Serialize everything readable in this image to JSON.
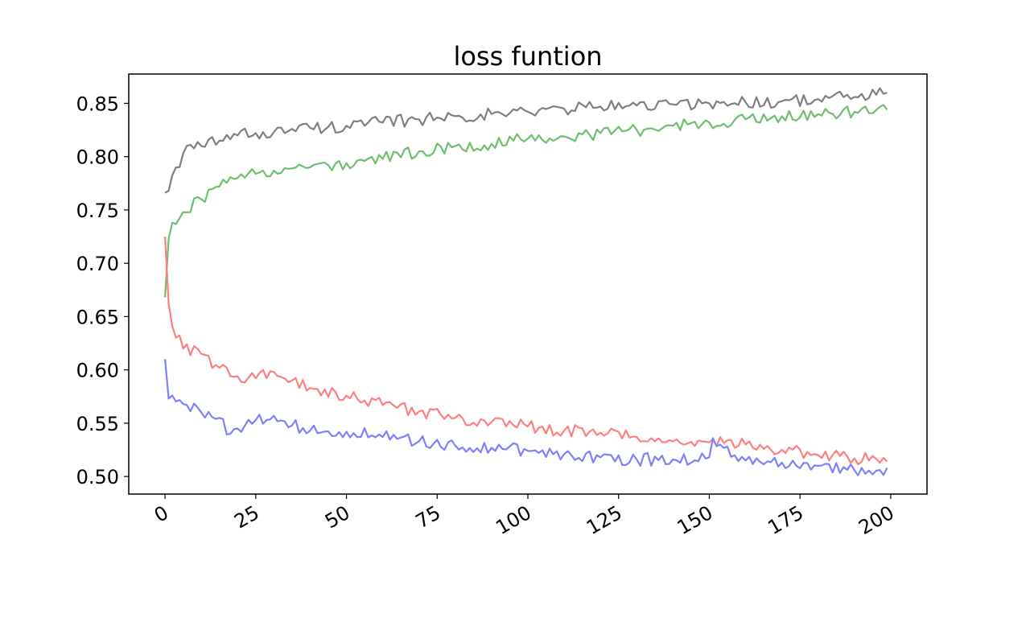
{
  "chart_data": {
    "type": "line",
    "title": "loss funtion",
    "xlabel": "",
    "ylabel": "",
    "xlim": [
      -10,
      210
    ],
    "ylim": [
      0.4835,
      0.8775
    ],
    "xticks": [
      0,
      25,
      50,
      75,
      100,
      125,
      150,
      175,
      200
    ],
    "xtick_labels": [
      "0",
      "25",
      "50",
      "75",
      "100",
      "125",
      "150",
      "175",
      "200"
    ],
    "yticks": [
      0.5,
      0.55,
      0.6,
      0.65,
      0.7,
      0.75,
      0.8,
      0.85
    ],
    "ytick_labels": [
      "0.50",
      "0.55",
      "0.60",
      "0.65",
      "0.70",
      "0.75",
      "0.80",
      "0.85"
    ],
    "grid": false,
    "series": [
      {
        "color": "#808080",
        "x": [
          0,
          5,
          10,
          15,
          20,
          25,
          30,
          35,
          40,
          45,
          50,
          60,
          70,
          80,
          90,
          100,
          110,
          120,
          130,
          140,
          150,
          160,
          170,
          180,
          190,
          199
        ],
        "y": [
          0.766,
          0.803,
          0.81,
          0.815,
          0.82,
          0.822,
          0.823,
          0.826,
          0.827,
          0.828,
          0.829,
          0.832,
          0.835,
          0.838,
          0.84,
          0.842,
          0.845,
          0.847,
          0.848,
          0.849,
          0.85,
          0.851,
          0.852,
          0.854,
          0.856,
          0.86
        ]
      },
      {
        "color": "#6fbf6f",
        "x": [
          0,
          1,
          2,
          5,
          10,
          15,
          20,
          25,
          30,
          35,
          40,
          45,
          50,
          60,
          70,
          80,
          90,
          100,
          110,
          120,
          130,
          140,
          150,
          160,
          170,
          180,
          190,
          199
        ],
        "y": [
          0.668,
          0.723,
          0.738,
          0.748,
          0.76,
          0.772,
          0.78,
          0.784,
          0.787,
          0.789,
          0.79,
          0.792,
          0.794,
          0.798,
          0.805,
          0.81,
          0.812,
          0.817,
          0.819,
          0.822,
          0.825,
          0.829,
          0.832,
          0.835,
          0.838,
          0.84,
          0.842,
          0.844
        ]
      },
      {
        "color": "#ff7f7f",
        "x": [
          0,
          1,
          2,
          5,
          10,
          15,
          20,
          25,
          30,
          35,
          40,
          50,
          60,
          70,
          80,
          90,
          100,
          110,
          120,
          130,
          140,
          150,
          160,
          170,
          180,
          190,
          199
        ],
        "y": [
          0.725,
          0.662,
          0.641,
          0.62,
          0.615,
          0.602,
          0.594,
          0.592,
          0.598,
          0.59,
          0.583,
          0.576,
          0.567,
          0.561,
          0.555,
          0.551,
          0.547,
          0.543,
          0.541,
          0.537,
          0.533,
          0.532,
          0.53,
          0.525,
          0.52,
          0.517,
          0.514
        ]
      },
      {
        "color": "#7f7fff",
        "x": [
          0,
          1,
          2,
          5,
          10,
          15,
          18,
          20,
          25,
          30,
          35,
          40,
          50,
          60,
          70,
          80,
          90,
          100,
          110,
          120,
          130,
          140,
          150,
          151,
          160,
          170,
          180,
          190,
          195,
          199
        ],
        "y": [
          0.61,
          0.573,
          0.576,
          0.568,
          0.56,
          0.555,
          0.54,
          0.545,
          0.553,
          0.557,
          0.548,
          0.543,
          0.542,
          0.537,
          0.533,
          0.529,
          0.527,
          0.524,
          0.521,
          0.518,
          0.516,
          0.516,
          0.518,
          0.536,
          0.515,
          0.513,
          0.51,
          0.506,
          0.502,
          0.508
        ]
      }
    ]
  }
}
